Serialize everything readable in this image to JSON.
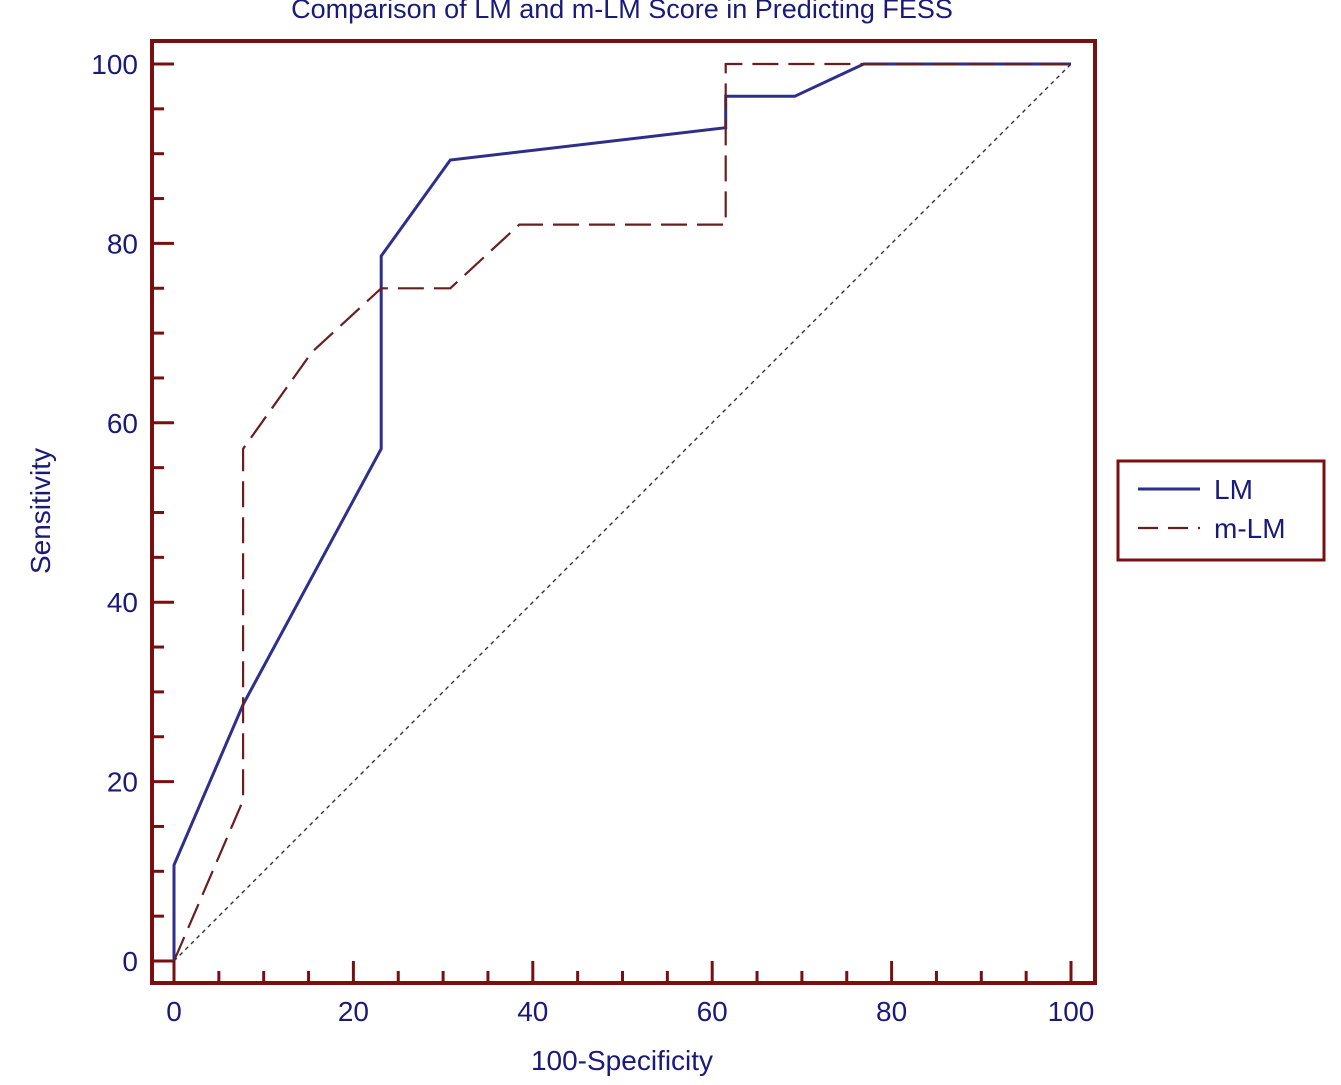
{
  "chart_data": {
    "type": "line",
    "title": "Comparison of LM and m-LM Score in Predicting FESS",
    "xlabel": "100-Specificity",
    "ylabel": "Sensitivity",
    "xlim": [
      0,
      100
    ],
    "ylim": [
      0,
      100
    ],
    "x_ticks": [
      0,
      20,
      40,
      60,
      80,
      100
    ],
    "y_ticks": [
      0,
      20,
      40,
      60,
      80,
      100
    ],
    "grid": false,
    "legend_position": "right",
    "series": [
      {
        "name": "LM",
        "style": "solid",
        "color": "#2e2e8c",
        "points": [
          [
            0,
            0
          ],
          [
            0,
            10.7
          ],
          [
            7.7,
            28.6
          ],
          [
            23.1,
            57.1
          ],
          [
            23.1,
            78.6
          ],
          [
            30.8,
            89.3
          ],
          [
            61.5,
            92.9
          ],
          [
            61.5,
            96.4
          ],
          [
            69.2,
            96.4
          ],
          [
            76.9,
            100
          ],
          [
            100,
            100
          ]
        ]
      },
      {
        "name": "m-LM",
        "style": "dashed",
        "color": "#6b1e1e",
        "points": [
          [
            0,
            0
          ],
          [
            7.7,
            17.9
          ],
          [
            7.7,
            57.1
          ],
          [
            15.4,
            67.9
          ],
          [
            23.1,
            75
          ],
          [
            30.8,
            75
          ],
          [
            38.5,
            82.1
          ],
          [
            61.5,
            82.1
          ],
          [
            61.5,
            100
          ],
          [
            100,
            100
          ]
        ]
      },
      {
        "name": "",
        "style": "dotted",
        "color": "#333333",
        "points": [
          [
            0,
            0
          ],
          [
            100,
            100
          ]
        ]
      }
    ]
  },
  "colors": {
    "frame": "#7a0f0f",
    "text": "#1a1a7a"
  }
}
